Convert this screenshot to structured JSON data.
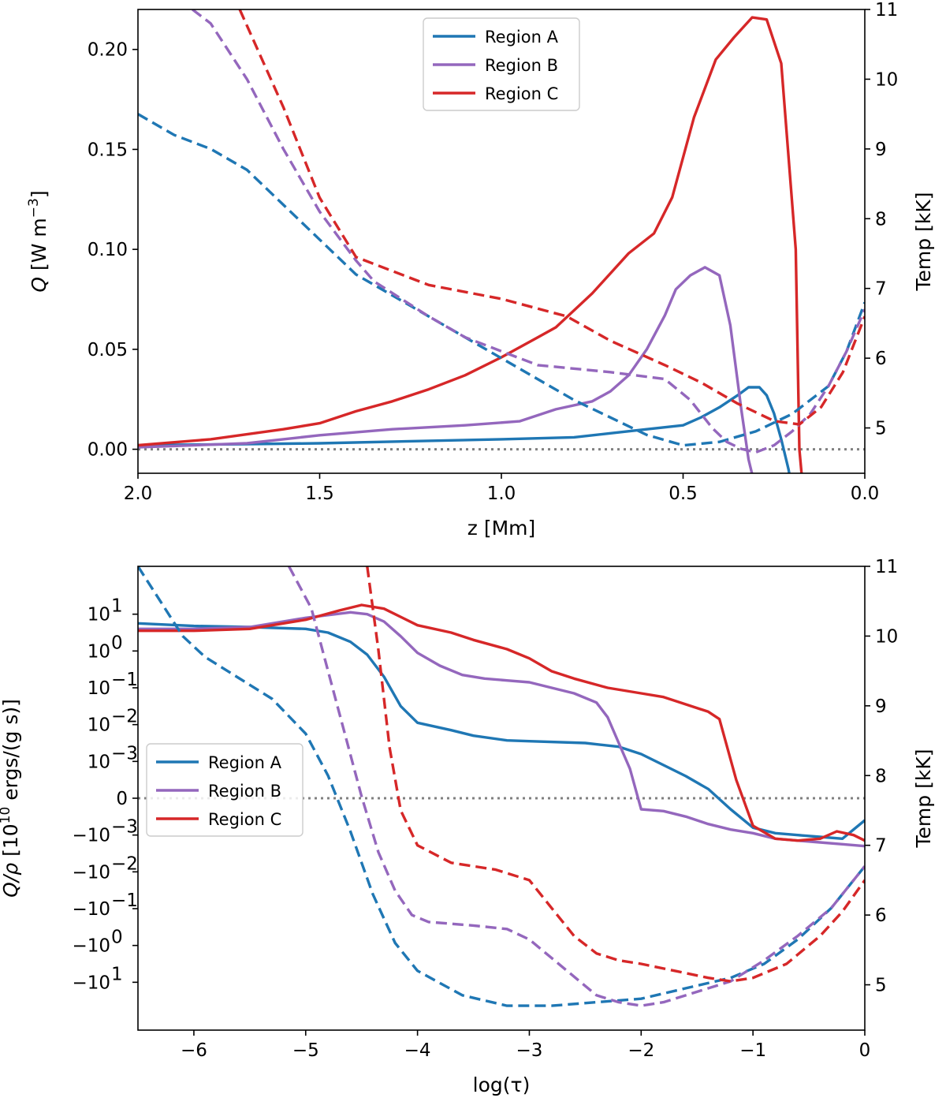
{
  "chart_data": [
    {
      "type": "line",
      "id": "top",
      "title": "",
      "xlabel": "z [Mm]",
      "ylabel": "Q  [W m",
      "ylabel_sup": "−3",
      "ylabel_end": "]",
      "ylabel2": "Temp [kK]",
      "xlim": [
        2.0,
        0.0
      ],
      "ylim": [
        -0.012,
        0.22
      ],
      "y2lim": [
        4.35,
        11.0
      ],
      "xticks": [
        2.0,
        1.5,
        1.0,
        0.5,
        0.0
      ],
      "xtick_labels": [
        "2.0",
        "1.5",
        "1.0",
        "0.5",
        "0.0"
      ],
      "yticks": [
        0.0,
        0.05,
        0.1,
        0.15,
        0.2
      ],
      "ytick_labels": [
        "0.00",
        "0.05",
        "0.10",
        "0.15",
        "0.20"
      ],
      "y2ticks": [
        5,
        6,
        7,
        8,
        9,
        10,
        11
      ],
      "y2tick_labels": [
        "5",
        "6",
        "7",
        "8",
        "9",
        "10",
        "11"
      ],
      "zero_line": 0,
      "legend_position": "top-center",
      "legend": [
        "Region A",
        "Region B",
        "Region C"
      ],
      "series": [
        {
          "name": "Region A",
          "color": "#1f77b4",
          "axis": "left",
          "style": "solid",
          "x": [
            2.0,
            1.5,
            1.0,
            0.8,
            0.7,
            0.6,
            0.55,
            0.5,
            0.45,
            0.4,
            0.35,
            0.32,
            0.29,
            0.27,
            0.25,
            0.23,
            0.21,
            0.2
          ],
          "y": [
            0.002,
            0.003,
            0.005,
            0.006,
            0.008,
            0.01,
            0.011,
            0.012,
            0.016,
            0.021,
            0.027,
            0.031,
            0.031,
            0.027,
            0.018,
            0.005,
            -0.01,
            -0.02
          ]
        },
        {
          "name": "Region B",
          "color": "#9467bd",
          "axis": "left",
          "style": "solid",
          "x": [
            2.0,
            1.7,
            1.5,
            1.3,
            1.1,
            0.95,
            0.85,
            0.75,
            0.7,
            0.65,
            0.6,
            0.55,
            0.52,
            0.48,
            0.44,
            0.4,
            0.37,
            0.34,
            0.32,
            0.3,
            0.29
          ],
          "y": [
            0.001,
            0.003,
            0.007,
            0.01,
            0.012,
            0.014,
            0.02,
            0.024,
            0.029,
            0.037,
            0.05,
            0.067,
            0.08,
            0.087,
            0.091,
            0.087,
            0.062,
            0.02,
            -0.005,
            -0.02,
            -0.02
          ]
        },
        {
          "name": "Region C",
          "color": "#d62728",
          "axis": "left",
          "style": "solid",
          "x": [
            2.0,
            1.8,
            1.6,
            1.5,
            1.4,
            1.3,
            1.2,
            1.1,
            1.0,
            0.9,
            0.85,
            0.75,
            0.65,
            0.58,
            0.53,
            0.47,
            0.41,
            0.36,
            0.31,
            0.27,
            0.23,
            0.19,
            0.18,
            0.17
          ],
          "y": [
            0.002,
            0.005,
            0.01,
            0.013,
            0.019,
            0.024,
            0.03,
            0.037,
            0.046,
            0.056,
            0.061,
            0.078,
            0.098,
            0.108,
            0.126,
            0.166,
            0.195,
            0.206,
            0.216,
            0.215,
            0.193,
            0.1,
            0.0,
            -0.02
          ]
        },
        {
          "name": "Region A",
          "color": "#1f77b4",
          "axis": "right",
          "style": "dashed",
          "x": [
            2.0,
            1.9,
            1.8,
            1.7,
            1.6,
            1.5,
            1.4,
            1.3,
            1.2,
            1.0,
            0.8,
            0.6,
            0.5,
            0.4,
            0.3,
            0.2,
            0.1,
            0.05,
            0.0
          ],
          "y": [
            9.5,
            9.2,
            9.0,
            8.7,
            8.2,
            7.7,
            7.2,
            6.9,
            6.6,
            6.0,
            5.4,
            4.9,
            4.75,
            4.8,
            4.95,
            5.2,
            5.6,
            6.1,
            6.8
          ]
        },
        {
          "name": "Region B",
          "color": "#9467bd",
          "axis": "right",
          "style": "dashed",
          "x": [
            1.85,
            1.8,
            1.7,
            1.6,
            1.5,
            1.4,
            1.35,
            1.2,
            1.1,
            1.0,
            0.9,
            0.7,
            0.55,
            0.48,
            0.42,
            0.38,
            0.34,
            0.3,
            0.25,
            0.2,
            0.15,
            0.1,
            0.05,
            0.0
          ],
          "y": [
            11.0,
            10.8,
            10.0,
            9.0,
            8.1,
            7.4,
            7.1,
            6.6,
            6.3,
            6.1,
            5.9,
            5.8,
            5.7,
            5.4,
            5.0,
            4.8,
            4.7,
            4.65,
            4.75,
            4.95,
            5.2,
            5.6,
            6.1,
            6.7
          ]
        },
        {
          "name": "Region C",
          "color": "#d62728",
          "axis": "right",
          "style": "dashed",
          "x": [
            1.72,
            1.6,
            1.5,
            1.4,
            1.3,
            1.2,
            1.0,
            0.82,
            0.7,
            0.55,
            0.45,
            0.35,
            0.25,
            0.18,
            0.12,
            0.06,
            0.0
          ],
          "y": [
            11.0,
            9.6,
            8.3,
            7.45,
            7.25,
            7.05,
            6.85,
            6.6,
            6.25,
            5.9,
            5.65,
            5.35,
            5.1,
            5.05,
            5.3,
            5.8,
            6.6
          ]
        }
      ]
    },
    {
      "type": "line",
      "id": "bottom",
      "title": "",
      "xlabel": "log(τ)",
      "ylabel": "Q/ρ  [10",
      "ylabel_sup": "10",
      "ylabel_end": " ergs/(g s)]",
      "ylabel2": "Temp [kK]",
      "xlim": [
        -6.5,
        0.0
      ],
      "ylim": [
        -6.3,
        6.3
      ],
      "y_scale": "symlog (tick index units: 0 = zero, ±1 = ±10^-3 ... ±5 = ±10^1)",
      "y2lim": [
        4.35,
        11.0
      ],
      "xticks": [
        -6,
        -5,
        -4,
        -3,
        -2,
        -1,
        0
      ],
      "xtick_labels": [
        "−6",
        "−5",
        "−4",
        "−3",
        "−2",
        "−1",
        "0"
      ],
      "yticks": [
        5,
        4,
        3,
        2,
        1,
        0,
        -1,
        -2,
        -3,
        -4,
        -5
      ],
      "ytick_bases": [
        "10",
        "10",
        "10",
        "10",
        "10",
        "0",
        "−10",
        "−10",
        "−10",
        "−10",
        "−10"
      ],
      "ytick_exps": [
        "1",
        "0",
        "−1",
        "−2",
        "−3",
        "",
        "−3",
        "−2",
        "−1",
        "0",
        "1"
      ],
      "y2ticks": [
        5,
        6,
        7,
        8,
        9,
        10,
        11
      ],
      "y2tick_labels": [
        "5",
        "6",
        "7",
        "8",
        "9",
        "10",
        "11"
      ],
      "zero_line": 0,
      "legend_position": "center-left",
      "legend": [
        "Region A",
        "Region B",
        "Region C"
      ],
      "series": [
        {
          "name": "Region A",
          "color": "#1f77b4",
          "axis": "left",
          "style": "solid",
          "x": [
            -6.5,
            -6.0,
            -5.5,
            -5.0,
            -4.8,
            -4.6,
            -4.45,
            -4.3,
            -4.15,
            -4.0,
            -3.7,
            -3.5,
            -3.2,
            -3.0,
            -2.5,
            -2.2,
            -2.0,
            -1.8,
            -1.6,
            -1.4,
            -1.2,
            -1.0,
            -0.8,
            -0.6,
            -0.4,
            -0.2,
            0.0
          ],
          "y": [
            4.75,
            4.68,
            4.65,
            4.6,
            4.5,
            4.25,
            3.9,
            3.3,
            2.5,
            2.05,
            1.85,
            1.7,
            1.57,
            1.55,
            1.5,
            1.4,
            1.2,
            0.9,
            0.6,
            0.25,
            -0.3,
            -0.8,
            -0.95,
            -1.0,
            -1.05,
            -1.1,
            -0.6
          ]
        },
        {
          "name": "Region B",
          "color": "#9467bd",
          "axis": "left",
          "style": "solid",
          "x": [
            -6.5,
            -6.0,
            -5.5,
            -5.0,
            -4.6,
            -4.45,
            -4.3,
            -4.15,
            -4.0,
            -3.8,
            -3.6,
            -3.4,
            -3.2,
            -3.0,
            -2.8,
            -2.6,
            -2.4,
            -2.3,
            -2.2,
            -2.1,
            -2.0,
            -1.8,
            -1.6,
            -1.4,
            -1.2,
            -1.0,
            -0.8,
            -0.6,
            -0.4,
            -0.2,
            0.0
          ],
          "y": [
            4.6,
            4.6,
            4.65,
            4.9,
            5.05,
            5.0,
            4.8,
            4.4,
            3.95,
            3.6,
            3.35,
            3.25,
            3.2,
            3.15,
            3.0,
            2.85,
            2.6,
            2.2,
            1.5,
            0.8,
            -0.3,
            -0.35,
            -0.5,
            -0.7,
            -0.85,
            -0.95,
            -1.1,
            -1.15,
            -1.2,
            -1.25,
            -1.3
          ]
        },
        {
          "name": "Region C",
          "color": "#d62728",
          "axis": "left",
          "style": "solid",
          "x": [
            -6.5,
            -6.0,
            -5.5,
            -5.0,
            -4.7,
            -4.5,
            -4.3,
            -4.0,
            -3.7,
            -3.5,
            -3.2,
            -3.0,
            -2.8,
            -2.6,
            -2.3,
            -2.0,
            -1.8,
            -1.6,
            -1.4,
            -1.3,
            -1.15,
            -1.0,
            -0.8,
            -0.6,
            -0.4,
            -0.25,
            -0.1,
            0.0
          ],
          "y": [
            4.55,
            4.55,
            4.6,
            4.85,
            5.1,
            5.25,
            5.15,
            4.7,
            4.5,
            4.3,
            4.05,
            3.8,
            3.45,
            3.25,
            3.0,
            2.85,
            2.75,
            2.55,
            2.35,
            2.15,
            0.5,
            -0.75,
            -1.1,
            -1.15,
            -1.1,
            -0.9,
            -1.0,
            -1.15
          ]
        },
        {
          "name": "Region A",
          "color": "#1f77b4",
          "axis": "right",
          "style": "dashed",
          "x": [
            -6.5,
            -6.3,
            -6.1,
            -5.9,
            -5.6,
            -5.3,
            -5.0,
            -4.8,
            -4.6,
            -4.4,
            -4.2,
            -4.0,
            -3.6,
            -3.2,
            -2.8,
            -2.4,
            -2.0,
            -1.6,
            -1.2,
            -0.9,
            -0.6,
            -0.3,
            0.0
          ],
          "y": [
            11.0,
            10.5,
            10.0,
            9.7,
            9.4,
            9.1,
            8.6,
            8.0,
            7.2,
            6.3,
            5.6,
            5.2,
            4.85,
            4.7,
            4.7,
            4.75,
            4.8,
            4.95,
            5.1,
            5.3,
            5.65,
            6.1,
            6.7
          ]
        },
        {
          "name": "Region B",
          "color": "#9467bd",
          "axis": "right",
          "style": "dashed",
          "x": [
            -5.15,
            -4.95,
            -4.8,
            -4.65,
            -4.5,
            -4.35,
            -4.2,
            -4.05,
            -3.9,
            -3.5,
            -3.2,
            -3.0,
            -2.7,
            -2.4,
            -2.2,
            -2.0,
            -1.8,
            -1.5,
            -1.2,
            -0.9,
            -0.6,
            -0.3,
            0.0
          ],
          "y": [
            11.0,
            10.4,
            9.5,
            8.6,
            7.7,
            6.9,
            6.35,
            6.0,
            5.9,
            5.85,
            5.8,
            5.65,
            5.25,
            4.85,
            4.75,
            4.7,
            4.75,
            4.9,
            5.05,
            5.35,
            5.7,
            6.1,
            6.7
          ]
        },
        {
          "name": "Region C",
          "color": "#d62728",
          "axis": "right",
          "style": "dashed",
          "x": [
            -4.45,
            -4.35,
            -4.25,
            -4.15,
            -4.0,
            -3.7,
            -3.3,
            -3.0,
            -2.8,
            -2.6,
            -2.4,
            -2.2,
            -2.0,
            -1.7,
            -1.4,
            -1.2,
            -1.0,
            -0.7,
            -0.4,
            -0.2,
            0.0
          ],
          "y": [
            11.0,
            9.8,
            8.4,
            7.5,
            7.0,
            6.75,
            6.65,
            6.5,
            6.1,
            5.7,
            5.45,
            5.35,
            5.3,
            5.2,
            5.1,
            5.05,
            5.1,
            5.3,
            5.7,
            6.05,
            6.5
          ]
        }
      ]
    }
  ]
}
